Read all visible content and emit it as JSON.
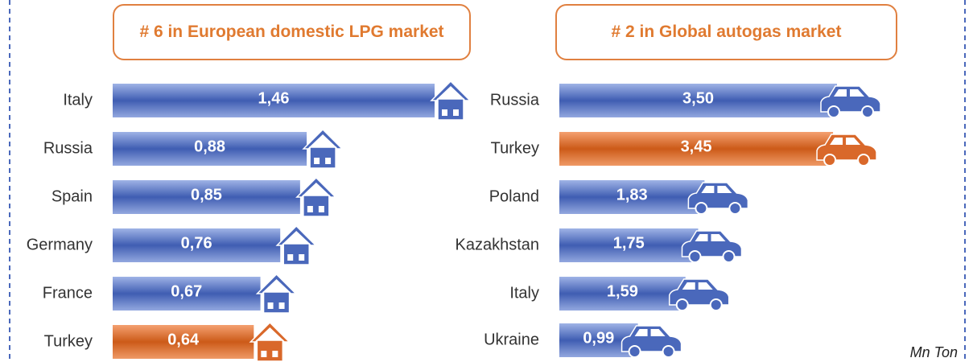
{
  "chart_data": [
    {
      "type": "bar",
      "orientation": "horizontal",
      "title": "# 6 in European domestic LPG market",
      "categories": [
        "Italy",
        "Russia",
        "Spain",
        "Germany",
        "France",
        "Turkey"
      ],
      "values": [
        1.46,
        0.88,
        0.85,
        0.76,
        0.67,
        0.64
      ],
      "value_labels": [
        "1,46",
        "0,88",
        "0,85",
        "0,76",
        "0,67",
        "0,64"
      ],
      "colors": [
        "#4a68bb",
        "#4a68bb",
        "#4a68bb",
        "#4a68bb",
        "#4a68bb",
        "#d9682a"
      ]
    },
    {
      "type": "bar",
      "orientation": "horizontal",
      "title": "# 2 in Global autogas market",
      "categories": [
        "Russia",
        "Turkey",
        "Poland",
        "Kazakhstan",
        "Italy",
        "Ukraine"
      ],
      "values": [
        3.5,
        3.45,
        1.83,
        1.75,
        1.59,
        0.99
      ],
      "value_labels": [
        "3,50",
        "3,45",
        "1,83",
        "1,75",
        "1,59",
        "0,99"
      ],
      "colors": [
        "#4a68bb",
        "#d9682a",
        "#4a68bb",
        "#4a68bb",
        "#4a68bb",
        "#4a68bb"
      ]
    }
  ],
  "note": "Mn Ton"
}
